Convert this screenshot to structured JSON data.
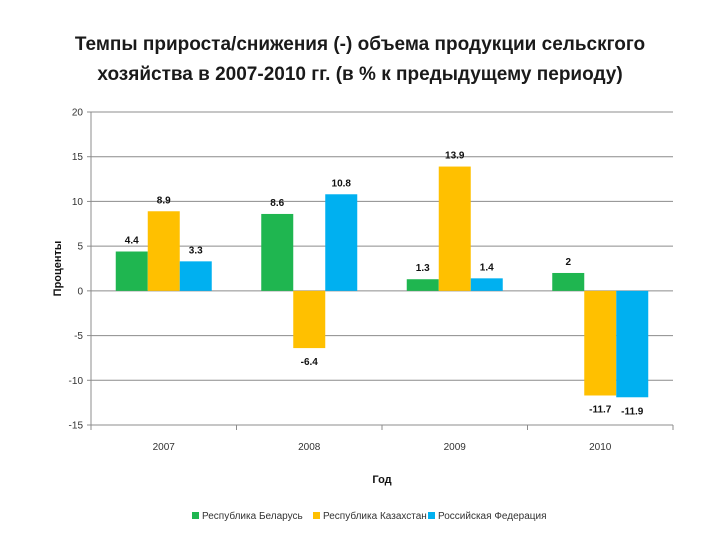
{
  "chart_data": {
    "type": "bar",
    "title": [
      "Темпы прироста/снижения (-) объема продукции сельскгого",
      "хозяйства в 2007-2010 гг. (в % к предыдущему периоду)"
    ],
    "xlabel": "Год",
    "ylabel": "Проценты",
    "categories": [
      "2007",
      "2008",
      "2009",
      "2010"
    ],
    "series": [
      {
        "name": "Республика Беларусь",
        "color": "#1fb650",
        "values": [
          4.4,
          8.6,
          1.3,
          2
        ]
      },
      {
        "name": "Республика Казахстан",
        "color": "#ffc000",
        "values": [
          8.9,
          -6.4,
          13.9,
          -11.7
        ]
      },
      {
        "name": "Российская Федерация",
        "color": "#00b0f0",
        "values": [
          3.3,
          10.8,
          1.4,
          -11.9
        ]
      }
    ],
    "ylim": [
      -15,
      20
    ],
    "yticks": [
      -15,
      -10,
      -5,
      0,
      5,
      10,
      15,
      20
    ],
    "grid": true,
    "legend": "bottom"
  }
}
